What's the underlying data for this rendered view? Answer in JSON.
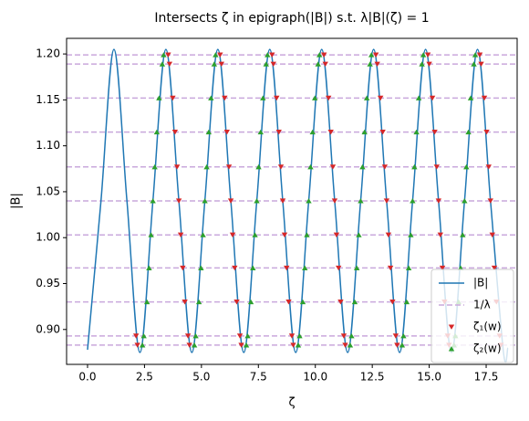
{
  "chart_data": {
    "type": "line",
    "title": "Intersects ζ in epigraph(|B|) s.t. λ|B|(ζ) = 1",
    "xlabel": "ζ",
    "ylabel": "|B|",
    "xlim": [
      -0.92,
      18.86
    ],
    "ylim": [
      0.862,
      1.217
    ],
    "xticks": [
      {
        "value": 0,
        "label": "0.0"
      },
      2.5,
      {
        "value": 5,
        "label": "5.0"
      },
      7.5,
      {
        "value": 10,
        "label": "10.0"
      },
      12.5,
      {
        "value": 15,
        "label": "15.0"
      },
      17.5
    ],
    "yticks": [
      {
        "value": 0.9,
        "label": "0.90"
      },
      0.95,
      {
        "value": 1,
        "label": "1.00"
      },
      1.05,
      {
        "value": 1.1,
        "label": "1.10"
      },
      1.15,
      {
        "value": 1.2,
        "label": "1.20"
      }
    ],
    "legend": "lower right",
    "series": [
      {
        "name": "|B|",
        "kind": "line",
        "color": "#1f77b4",
        "x": [
          0,
          0.59,
          1.16,
          1.73,
          2.3,
          2.87,
          3.44,
          4.01,
          4.58,
          5.15,
          5.72,
          6.29,
          6.86,
          7.43,
          8.0,
          8.57,
          9.14,
          9.71,
          10.28,
          10.85,
          11.42,
          11.99,
          12.56,
          13.13,
          13.7,
          14.27,
          14.84,
          15.41,
          15.98,
          16.55,
          17.12,
          17.69,
          18.26,
          18.45
        ],
        "values": [
          0.878,
          1.04,
          1.205,
          1.04,
          0.875,
          1.04,
          1.205,
          1.04,
          0.875,
          1.04,
          1.205,
          1.04,
          0.875,
          1.04,
          1.205,
          1.04,
          0.875,
          1.04,
          1.205,
          1.04,
          0.875,
          1.04,
          1.205,
          1.04,
          0.875,
          1.04,
          1.205,
          1.04,
          0.875,
          1.04,
          1.205,
          1.04,
          0.875,
          0.88
        ]
      },
      {
        "name": "1/λ",
        "kind": "hline",
        "color": "#c9a8dc",
        "values": [
          1.199,
          1.189,
          1.152,
          1.115,
          1.077,
          1.04,
          1.003,
          0.967,
          0.93,
          0.893,
          0.883
        ]
      },
      {
        "name": "ζ₁(w)",
        "kind": "scatter",
        "marker": "down",
        "color": "#d62728",
        "x": [
          2.13,
          2.19,
          3.54,
          3.6,
          3.74,
          3.84,
          3.93,
          4.01,
          4.09,
          4.18,
          4.27,
          4.41,
          4.47,
          5.82,
          5.88,
          6.02,
          6.12,
          6.21,
          6.29,
          6.37,
          6.46,
          6.55,
          6.69,
          6.75,
          8.1,
          8.16,
          8.3,
          8.4,
          8.49,
          8.57,
          8.65,
          8.74,
          8.83,
          8.97,
          9.03,
          10.38,
          10.44,
          10.58,
          10.68,
          10.77,
          10.85,
          10.93,
          11.02,
          11.11,
          11.25,
          11.31,
          12.66,
          12.72,
          12.86,
          12.96,
          13.05,
          13.13,
          13.21,
          13.3,
          13.39,
          13.53,
          13.59,
          14.94,
          15.0,
          15.14,
          15.24,
          15.33,
          15.41,
          15.49,
          15.58,
          15.67,
          15.81,
          15.87,
          17.22,
          17.28,
          17.42,
          17.52,
          17.61,
          17.69,
          17.77,
          17.86,
          17.95,
          18.09,
          18.15
        ],
        "values": [
          0.893,
          0.883,
          1.199,
          1.189,
          1.152,
          1.115,
          1.077,
          1.04,
          1.003,
          0.967,
          0.93,
          0.893,
          0.883,
          1.199,
          1.189,
          1.152,
          1.115,
          1.077,
          1.04,
          1.003,
          0.967,
          0.93,
          0.893,
          0.883,
          1.199,
          1.189,
          1.152,
          1.115,
          1.077,
          1.04,
          1.003,
          0.967,
          0.93,
          0.893,
          0.883,
          1.199,
          1.189,
          1.152,
          1.115,
          1.077,
          1.04,
          1.003,
          0.967,
          0.93,
          0.893,
          0.883,
          1.199,
          1.189,
          1.152,
          1.115,
          1.077,
          1.04,
          1.003,
          0.967,
          0.93,
          0.893,
          0.883,
          1.199,
          1.189,
          1.152,
          1.115,
          1.077,
          1.04,
          1.003,
          0.967,
          0.93,
          0.893,
          0.883,
          1.199,
          1.189,
          1.152,
          1.115,
          1.077,
          1.04,
          1.003,
          0.967,
          0.93,
          0.893,
          0.883
        ]
      },
      {
        "name": "ζ₂(w)",
        "kind": "scatter",
        "marker": "up",
        "color": "#2ca02c",
        "x": [
          3.34,
          3.28,
          3.14,
          3.04,
          2.95,
          2.87,
          2.79,
          2.7,
          2.61,
          2.47,
          2.41,
          5.62,
          5.56,
          5.42,
          5.32,
          5.23,
          5.15,
          5.07,
          4.98,
          4.89,
          4.75,
          4.69,
          7.9,
          7.84,
          7.7,
          7.6,
          7.51,
          7.43,
          7.35,
          7.26,
          7.17,
          7.03,
          6.97,
          10.18,
          10.12,
          9.98,
          9.88,
          9.79,
          9.71,
          9.63,
          9.54,
          9.45,
          9.31,
          9.25,
          12.46,
          12.4,
          12.26,
          12.16,
          12.07,
          11.99,
          11.91,
          11.82,
          11.73,
          11.59,
          11.53,
          14.74,
          14.68,
          14.54,
          14.44,
          14.35,
          14.27,
          14.19,
          14.1,
          14.01,
          13.87,
          13.81,
          17.02,
          16.96,
          16.82,
          16.72,
          16.63,
          16.55,
          16.47,
          16.38,
          16.29,
          16.15,
          16.09
        ],
        "values": [
          1.199,
          1.189,
          1.152,
          1.115,
          1.077,
          1.04,
          1.003,
          0.967,
          0.93,
          0.893,
          0.883,
          1.199,
          1.189,
          1.152,
          1.115,
          1.077,
          1.04,
          1.003,
          0.967,
          0.93,
          0.893,
          0.883,
          1.199,
          1.189,
          1.152,
          1.115,
          1.077,
          1.04,
          1.003,
          0.967,
          0.93,
          0.893,
          0.883,
          1.199,
          1.189,
          1.152,
          1.115,
          1.077,
          1.04,
          1.003,
          0.967,
          0.93,
          0.893,
          0.883,
          1.199,
          1.189,
          1.152,
          1.115,
          1.077,
          1.04,
          1.003,
          0.967,
          0.93,
          0.893,
          0.883,
          1.199,
          1.189,
          1.152,
          1.115,
          1.077,
          1.04,
          1.003,
          0.967,
          0.93,
          0.893,
          0.883,
          1.199,
          1.189,
          1.152,
          1.115,
          1.077,
          1.04,
          1.003,
          0.967,
          0.93,
          0.893,
          0.883
        ]
      }
    ]
  }
}
